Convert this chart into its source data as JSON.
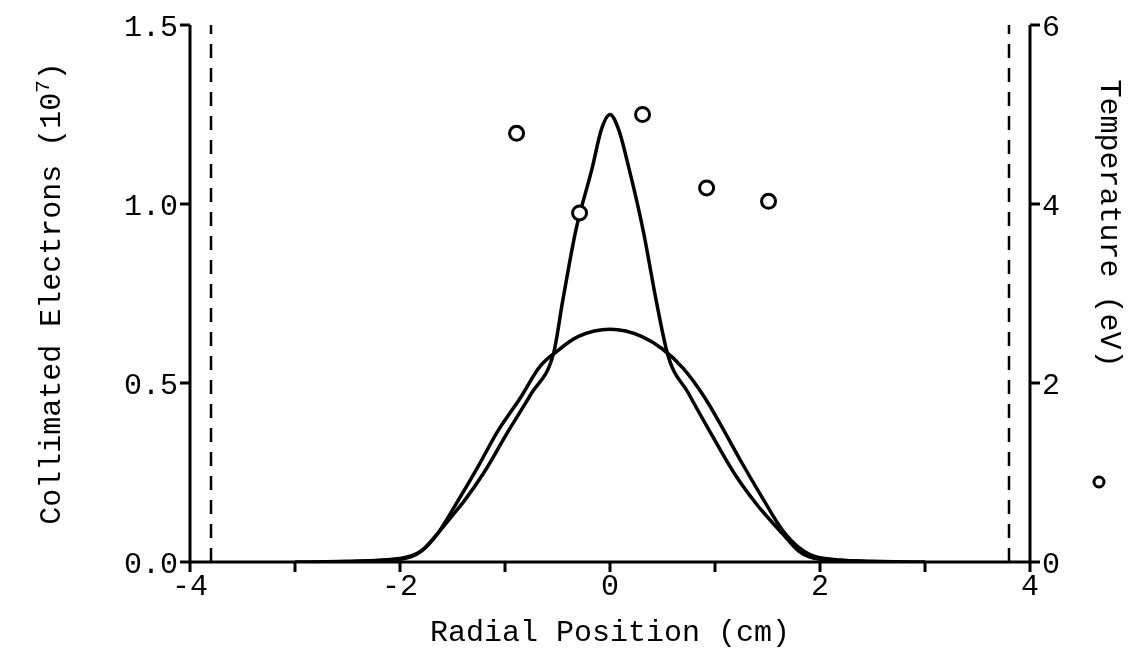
{
  "chart_data": {
    "type": "line",
    "xlabel": "Radial Position (cm)",
    "ylabel": "Collimated Electrons (10$^{7}$)",
    "y2label": "Temperature (eV)",
    "xlim": [
      -4,
      4
    ],
    "xticks": [
      -4,
      {
        "value": -3,
        "label": null
      },
      -2,
      {
        "value": -1,
        "label": null
      },
      0,
      {
        "value": 1,
        "label": null
      },
      2,
      {
        "value": 3,
        "label": null
      },
      4
    ],
    "ylim": [
      0,
      1.5
    ],
    "yticks": [
      {
        "value": 0,
        "label": "0.0"
      },
      {
        "value": 0.5,
        "label": "0.5"
      },
      {
        "value": 1,
        "label": "1.0"
      },
      {
        "value": 1.5,
        "label": "1.5"
      }
    ],
    "y2lim": [
      0,
      6
    ],
    "y2ticks": [
      0,
      2,
      4,
      6
    ],
    "line_style": "solid",
    "ref_lines": [
      {
        "axis": "x",
        "value": -3.8,
        "line_style": "dashed",
        "color": "#000000"
      },
      {
        "axis": "x",
        "value": 3.8,
        "line_style": "dashed",
        "color": "#000000"
      }
    ],
    "series": [
      {
        "color": "#000000",
        "marker": "none",
        "x": [
          -3.0,
          -2.5,
          -2.0,
          -1.8,
          -1.64,
          -1.5,
          -1.39,
          -1.2,
          -0.98,
          -0.75,
          -0.54,
          -0.45,
          -0.33,
          -0.17,
          -0.08,
          0,
          0.08,
          0.18,
          0.32,
          0.44,
          0.54,
          0.75,
          0.96,
          1.2,
          1.4,
          1.64,
          1.8,
          2.0,
          2.5,
          3.0
        ],
        "values": [
          0,
          0.002,
          0.008,
          0.03,
          0.08,
          0.13,
          0.17,
          0.25,
          0.36,
          0.47,
          0.58,
          0.73,
          0.92,
          1.1,
          1.21,
          1.25,
          1.21,
          1.1,
          0.92,
          0.73,
          0.59,
          0.47,
          0.36,
          0.24,
          0.16,
          0.08,
          0.03,
          0.008,
          0.002,
          0
        ]
      },
      {
        "color": "#000000",
        "marker": "none",
        "x": [
          -2.5,
          -2.0,
          -1.8,
          -1.64,
          -1.45,
          -1.25,
          -1.08,
          -0.85,
          -0.67,
          -0.5,
          -0.3,
          0,
          0.3,
          0.5,
          0.7,
          0.9,
          1.08,
          1.25,
          1.45,
          1.64,
          1.8,
          2.0,
          2.5
        ],
        "values": [
          0,
          0.01,
          0.03,
          0.08,
          0.17,
          0.27,
          0.36,
          0.46,
          0.545,
          0.59,
          0.63,
          0.65,
          0.63,
          0.595,
          0.54,
          0.46,
          0.37,
          0.28,
          0.18,
          0.09,
          0.04,
          0.012,
          0
        ]
      },
      {
        "type": "scatter",
        "axis": "y2",
        "color": "#000000",
        "marker": "circle",
        "x": [
          -0.89,
          -0.29,
          0.31,
          0.92,
          1.51
        ],
        "values": [
          4.79,
          3.9,
          5.0,
          4.18,
          4.03
        ]
      }
    ]
  }
}
